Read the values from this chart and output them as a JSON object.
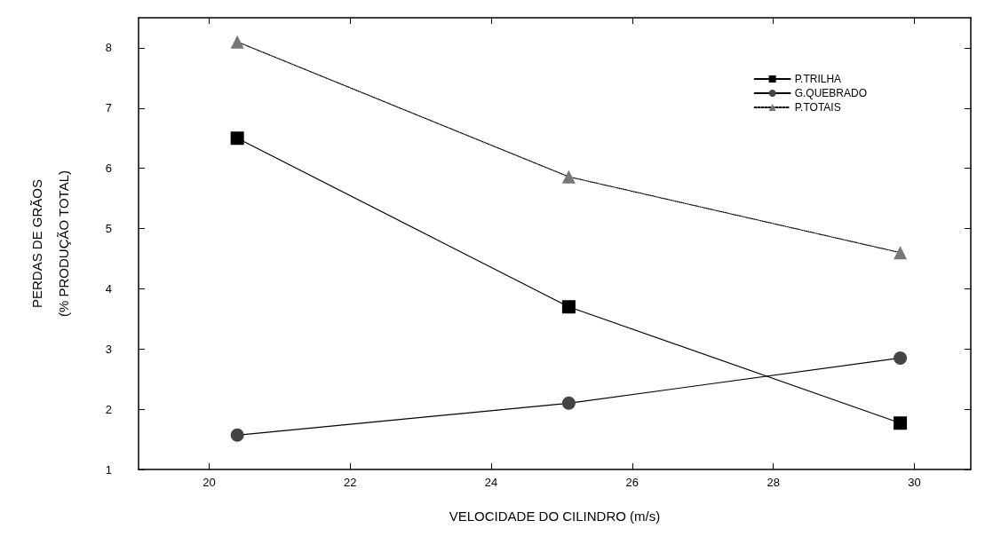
{
  "chart_data": {
    "type": "line",
    "xlabel": "VELOCIDADE DO CILINDRO (m/s)",
    "ylabel": "PERDAS DE GRÃOS\n(% PRODUÇÃO TOTAL)",
    "x": [
      20.4,
      25.1,
      29.8
    ],
    "series": [
      {
        "name": "P.TRILHA",
        "color": "#000000",
        "marker": "square",
        "line_style": "solid",
        "values": [
          6.5,
          3.7,
          1.77
        ]
      },
      {
        "name": "G.QUEBRADO",
        "color": "#444444",
        "marker": "circle",
        "line_style": "solid",
        "values": [
          1.57,
          2.1,
          2.85
        ]
      },
      {
        "name": "P.TOTAIS",
        "color": "#777777",
        "marker": "triangle",
        "line_style": "dotted",
        "values": [
          8.1,
          5.86,
          4.6
        ]
      }
    ],
    "xlim": [
      19,
      30.8
    ],
    "xticks": [
      20,
      22,
      24,
      26,
      28,
      30
    ],
    "ylim": [
      1,
      8.5
    ],
    "yticks": [
      1,
      2,
      3,
      4,
      5,
      6,
      7,
      8
    ],
    "grid": false,
    "legend": "top right"
  }
}
